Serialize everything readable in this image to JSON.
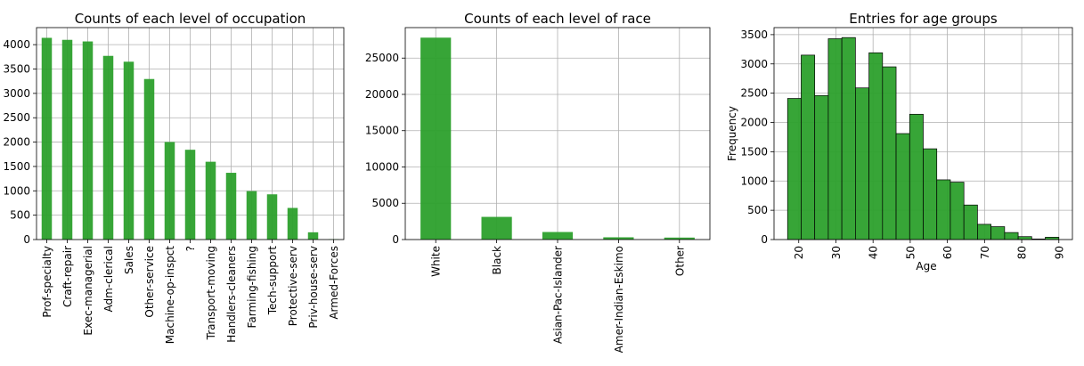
{
  "chart_data": [
    {
      "type": "bar",
      "title": "Counts of each level of occupation",
      "xlabel": "",
      "ylabel": "",
      "categories": [
        "Prof-specialty",
        "Craft-repair",
        "Exec-managerial",
        "Adm-clerical",
        "Sales",
        "Other-service",
        "Machine-op-inspct",
        "?",
        "Transport-moving",
        "Handlers-cleaners",
        "Farming-fishing",
        "Tech-support",
        "Protective-serv",
        "Priv-house-serv",
        "Armed-Forces"
      ],
      "values": [
        4140,
        4099,
        4066,
        3770,
        3650,
        3295,
        2002,
        1843,
        1597,
        1370,
        994,
        928,
        649,
        149,
        9
      ],
      "ylim": [
        0,
        4350
      ],
      "yticks": [
        0,
        500,
        1000,
        1500,
        2000,
        2500,
        3000,
        3500,
        4000
      ],
      "grid": true,
      "color": "#2ca02c"
    },
    {
      "type": "bar",
      "title": "Counts of each level of race",
      "xlabel": "",
      "ylabel": "",
      "categories": [
        "White",
        "Black",
        "Asian-Pac-Islander",
        "Amer-Indian-Eskimo",
        "Other"
      ],
      "values": [
        27816,
        3124,
        1039,
        311,
        271
      ],
      "ylim": [
        0,
        29200
      ],
      "yticks": [
        0,
        5000,
        10000,
        15000,
        20000,
        25000
      ],
      "grid": true,
      "color": "#2ca02c"
    },
    {
      "type": "histogram",
      "title": "Entries for age groups",
      "xlabel": "Age",
      "ylabel": "Frequency",
      "bin_start": 17,
      "bin_width": 3.65,
      "values": [
        2410,
        3150,
        2460,
        3430,
        3450,
        2590,
        3190,
        2950,
        1810,
        2140,
        1550,
        1020,
        980,
        590,
        260,
        220,
        120,
        50,
        10,
        40
      ],
      "xlim": [
        13.35,
        93.65
      ],
      "ylim": [
        0,
        3620
      ],
      "xticks": [
        20,
        30,
        40,
        50,
        60,
        70,
        80,
        90
      ],
      "yticks": [
        0,
        500,
        1000,
        1500,
        2000,
        2500,
        3000,
        3500
      ],
      "grid": true,
      "color": "#2ca02c"
    }
  ]
}
